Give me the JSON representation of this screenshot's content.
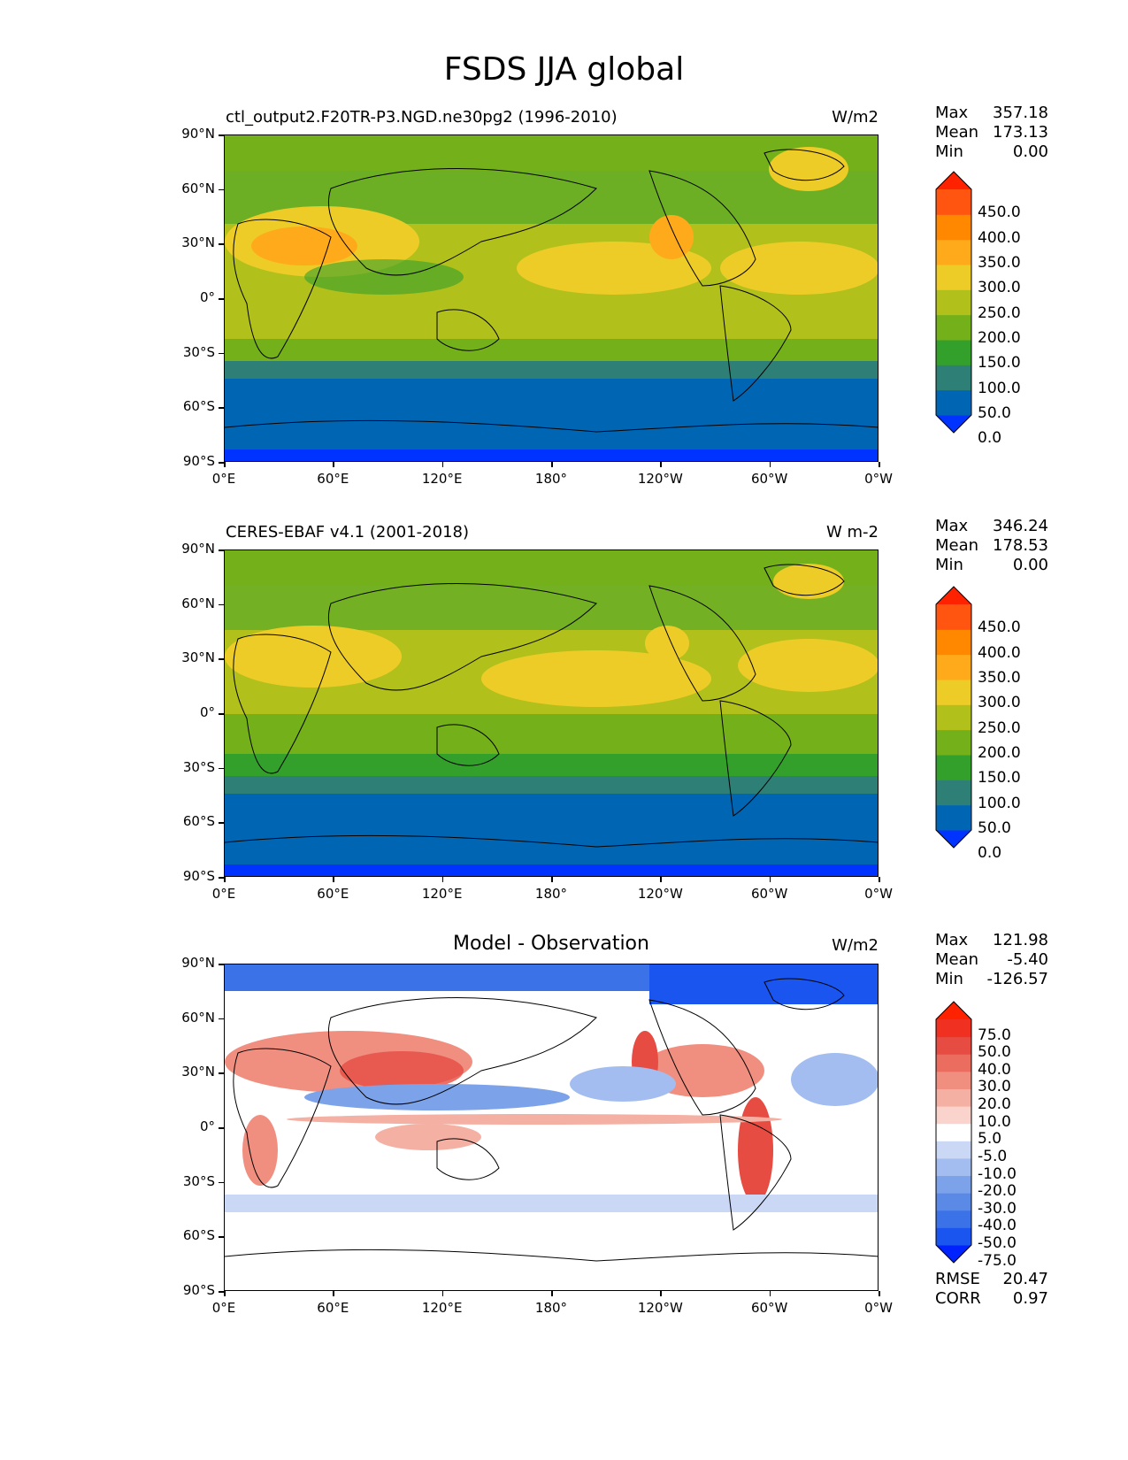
{
  "figure_title": "FSDS JJA global",
  "panels": [
    {
      "title": "ctl_output2.F20TR-P3.NGD.ne30pg2 (1996-2010)",
      "units": "W/m2",
      "stats": [
        {
          "label": "Max",
          "value": "357.18"
        },
        {
          "label": "Mean",
          "value": "173.13"
        },
        {
          "label": "Min",
          "value": "0.00"
        }
      ],
      "colorbar": {
        "labels": [
          "450.0",
          "400.0",
          "350.0",
          "300.0",
          "250.0",
          "200.0",
          "150.0",
          "100.0",
          "50.0",
          "0.0"
        ],
        "colors": [
          "#0033ff",
          "#0066b3",
          "#2e7f76",
          "#34a02c",
          "#74b01a",
          "#b2c01c",
          "#eecc28",
          "#ffaa1a",
          "#ff8800",
          "#ff5511",
          "#ff2200"
        ]
      }
    },
    {
      "title": "CERES-EBAF v4.1 (2001-2018)",
      "units": "W m-2",
      "stats": [
        {
          "label": "Max",
          "value": "346.24"
        },
        {
          "label": "Mean",
          "value": "178.53"
        },
        {
          "label": "Min",
          "value": "0.00"
        }
      ],
      "colorbar": {
        "labels": [
          "450.0",
          "400.0",
          "350.0",
          "300.0",
          "250.0",
          "200.0",
          "150.0",
          "100.0",
          "50.0",
          "0.0"
        ],
        "colors": [
          "#0033ff",
          "#0066b3",
          "#2e7f76",
          "#34a02c",
          "#74b01a",
          "#b2c01c",
          "#eecc28",
          "#ffaa1a",
          "#ff8800",
          "#ff5511",
          "#ff2200"
        ]
      }
    },
    {
      "title": "Model - Observation",
      "units": "W/m2",
      "stats": [
        {
          "label": "Max",
          "value": "121.98"
        },
        {
          "label": "Mean",
          "value": "-5.40"
        },
        {
          "label": "Min",
          "value": "-126.57"
        }
      ],
      "colorbar": {
        "labels": [
          "75.0",
          "50.0",
          "40.0",
          "30.0",
          "20.0",
          "10.0",
          "5.0",
          "-5.0",
          "-10.0",
          "-20.0",
          "-30.0",
          "-40.0",
          "-50.0",
          "-75.0"
        ],
        "colors": [
          "#0022ff",
          "#1a55f0",
          "#3b72e8",
          "#5b8ae6",
          "#7ca2ea",
          "#a3bdf0",
          "#cad8f6",
          "#ffffff",
          "#fad4cc",
          "#f5b0a4",
          "#f08e80",
          "#eb6d60",
          "#e64c42",
          "#f03020",
          "#ff2200"
        ]
      }
    }
  ],
  "extra_stats": [
    {
      "label": "RMSE",
      "value": "20.47"
    },
    {
      "label": "CORR",
      "value": "0.97"
    }
  ],
  "lat_ticks": [
    "90°N",
    "60°N",
    "30°N",
    "0°",
    "30°S",
    "60°S",
    "90°S"
  ],
  "lon_ticks": [
    "0°E",
    "60°E",
    "120°E",
    "180°",
    "120°W",
    "60°W",
    "0°W"
  ]
}
